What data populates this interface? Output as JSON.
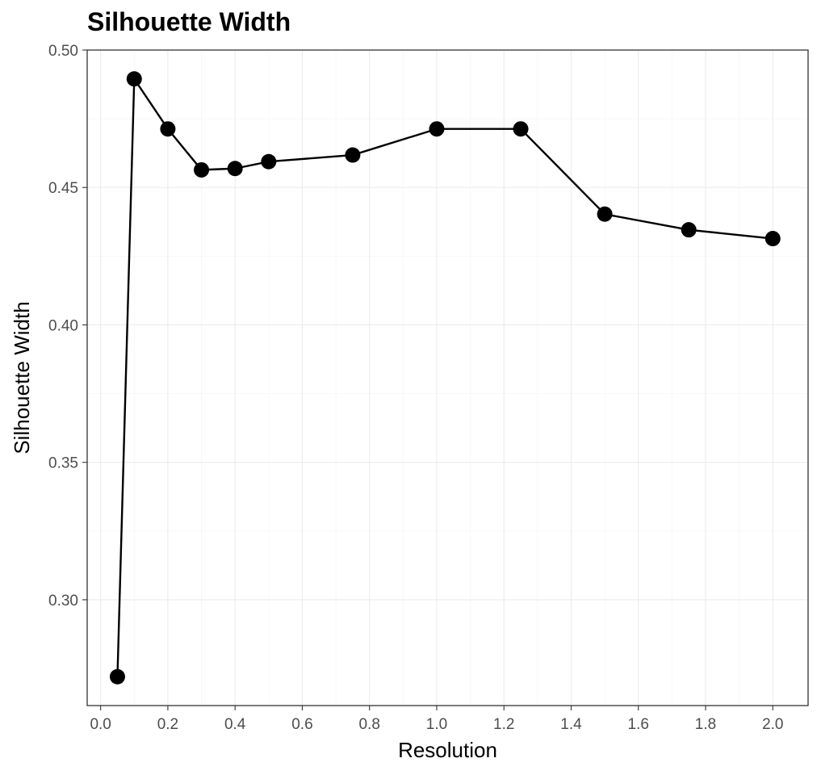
{
  "chart_data": {
    "type": "line",
    "title": "Silhouette Width",
    "xlabel": "Resolution",
    "ylabel": "Silhouette Width",
    "xlim": [
      -0.04,
      2.105
    ],
    "ylim": [
      0.2615,
      0.5
    ],
    "x_ticks": [
      0.0,
      0.2,
      0.4,
      0.6,
      0.8,
      1.0,
      1.2,
      1.4,
      1.6,
      1.8,
      2.0
    ],
    "x_tick_labels": [
      "0.0",
      "0.2",
      "0.4",
      "0.6",
      "0.8",
      "1.0",
      "1.2",
      "1.4",
      "1.6",
      "1.8",
      "2.0"
    ],
    "y_ticks": [
      0.3,
      0.35,
      0.4,
      0.45,
      0.5
    ],
    "y_tick_labels": [
      "0.30",
      "0.35",
      "0.40",
      "0.45",
      "0.50"
    ],
    "grid": true,
    "legend": "none",
    "series": [
      {
        "x": [
          0.05,
          0.1,
          0.2,
          0.3,
          0.4,
          0.5,
          0.75,
          1.0,
          1.25,
          1.5,
          1.75,
          2.0
        ],
        "values": [
          0.272,
          0.4895,
          0.4713,
          0.4564,
          0.4569,
          0.4594,
          0.4618,
          0.4713,
          0.4713,
          0.4403,
          0.4346,
          0.4314
        ],
        "color": "#000000"
      }
    ]
  }
}
